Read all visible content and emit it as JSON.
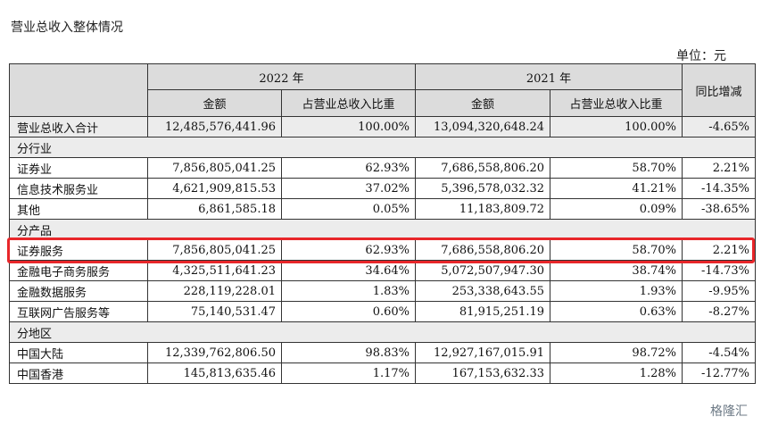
{
  "title": "营业总收入整体情况",
  "unit": "单位：元",
  "headers": {
    "year_2022": "2022 年",
    "year_2021": "2021 年",
    "amount": "金额",
    "ratio": "占营业总收入比重",
    "yoy": "同比增减"
  },
  "total": {
    "name": "营业总收入合计",
    "amount_2022": "12,485,576,441.96",
    "ratio_2022": "100.00%",
    "amount_2021": "13,094,320,648.24",
    "ratio_2021": "100.00%",
    "yoy": "-4.65%"
  },
  "sections": [
    {
      "name": "分行业",
      "rows": [
        {
          "name": "证券业",
          "amount_2022": "7,856,805,041.25",
          "ratio_2022": "62.93%",
          "amount_2021": "7,686,558,806.20",
          "ratio_2021": "58.70%",
          "yoy": "2.21%"
        },
        {
          "name": "信息技术服务业",
          "amount_2022": "4,621,909,815.53",
          "ratio_2022": "37.02%",
          "amount_2021": "5,396,578,032.32",
          "ratio_2021": "41.21%",
          "yoy": "-14.35%"
        },
        {
          "name": "其他",
          "amount_2022": "6,861,585.18",
          "ratio_2022": "0.05%",
          "amount_2021": "11,183,809.72",
          "ratio_2021": "0.09%",
          "yoy": "-38.65%"
        }
      ]
    },
    {
      "name": "分产品",
      "rows": [
        {
          "name": "证券服务",
          "amount_2022": "7,856,805,041.25",
          "ratio_2022": "62.93%",
          "amount_2021": "7,686,558,806.20",
          "ratio_2021": "58.70%",
          "yoy": "2.21%"
        },
        {
          "name": "金融电子商务服务",
          "amount_2022": "4,325,511,641.23",
          "ratio_2022": "34.64%",
          "amount_2021": "5,072,507,947.30",
          "ratio_2021": "38.74%",
          "yoy": "-14.73%"
        },
        {
          "name": "金融数据服务",
          "amount_2022": "228,119,228.01",
          "ratio_2022": "1.83%",
          "amount_2021": "253,338,643.55",
          "ratio_2021": "1.93%",
          "yoy": "-9.95%"
        },
        {
          "name": "互联网广告服务等",
          "amount_2022": "75,140,531.47",
          "ratio_2022": "0.60%",
          "amount_2021": "81,915,251.19",
          "ratio_2021": "0.63%",
          "yoy": "-8.27%"
        }
      ]
    },
    {
      "name": "分地区",
      "rows": [
        {
          "name": "中国大陆",
          "amount_2022": "12,339,762,806.50",
          "ratio_2022": "98.83%",
          "amount_2021": "12,927,167,015.91",
          "ratio_2021": "98.72%",
          "yoy": "-4.54%"
        },
        {
          "name": "中国香港",
          "amount_2022": "145,813,635.46",
          "ratio_2022": "1.17%",
          "amount_2021": "167,153,632.33",
          "ratio_2021": "1.28%",
          "yoy": "-12.77%"
        }
      ]
    }
  ],
  "watermark": "格隆汇",
  "highlight_color": "#e8262a"
}
